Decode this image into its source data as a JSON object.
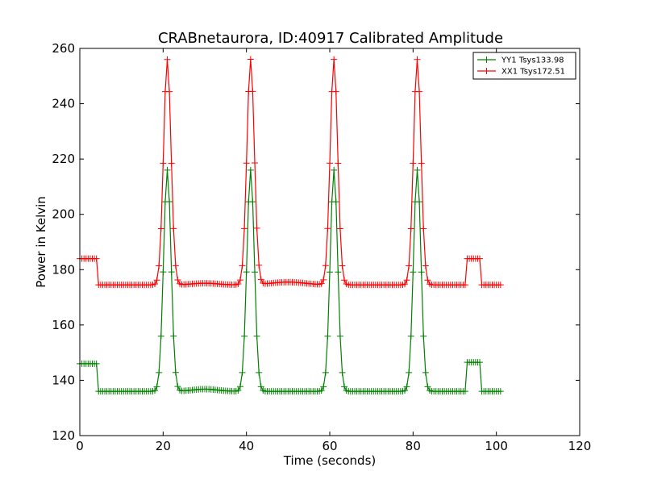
{
  "chart_data": {
    "type": "line",
    "title": "CRABnetaurora, ID:40917 Calibrated Amplitude",
    "xlabel": "Time (seconds)",
    "ylabel": "Power in Kelvin",
    "xlim": [
      0,
      120
    ],
    "ylim": [
      120,
      260
    ],
    "xticks": [
      "0",
      "20",
      "40",
      "60",
      "80",
      "100",
      "120"
    ],
    "yticks": [
      "120",
      "140",
      "160",
      "180",
      "200",
      "220",
      "240",
      "260"
    ],
    "grid": false,
    "legend_position": "top-right",
    "peak_centers": [
      21,
      41,
      61,
      81
    ],
    "series": [
      {
        "name": "YY1 Tsys133.98",
        "color": "#008000",
        "marker": "+",
        "baseline_high": 146,
        "baseline_low": 136,
        "peak": 216,
        "peak_width": 0.9,
        "wiggle": [
          {
            "center": 30,
            "width": 3,
            "amplitude": 0.8
          }
        ],
        "step_segments": [
          {
            "x_start": 0,
            "x_end": 4,
            "value": 146
          },
          {
            "x_start": 93,
            "x_end": 96,
            "value": 146.5
          }
        ]
      },
      {
        "name": "XX1 Tsys172.51",
        "color": "#ff0000",
        "marker": "+",
        "baseline_high": 184,
        "baseline_low": 174.5,
        "peak": 256,
        "peak_width": 0.9,
        "wiggle": [
          {
            "center": 30,
            "width": 3,
            "amplitude": 0.6
          },
          {
            "center": 50,
            "width": 4,
            "amplitude": 1.0
          }
        ],
        "step_segments": [
          {
            "x_start": 0,
            "x_end": 4,
            "value": 184
          },
          {
            "x_start": 93,
            "x_end": 96,
            "value": 184
          }
        ]
      }
    ],
    "x_end": 101,
    "sample_step": 0.5
  }
}
